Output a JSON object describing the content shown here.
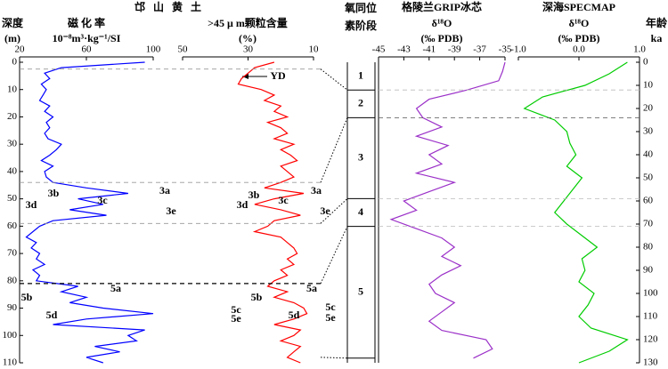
{
  "title": "邙 山 黄 土",
  "stages": {
    "title": "氧同位",
    "subtitle": "素阶段",
    "labels": [
      "1",
      "2",
      "3",
      "4",
      "5"
    ],
    "age_bounds": [
      0,
      12,
      24,
      59,
      71,
      128
    ],
    "depth_bounds": [
      0,
      2.5,
      44,
      59,
      81,
      108
    ]
  },
  "chart_data": [
    {
      "type": "line",
      "xlabel": "磁 化 率",
      "xunit": "10⁻⁸m³·kg⁻¹/SI",
      "ylabel": "深度",
      "yunit": "(m)",
      "color": "#0000ff",
      "xlim": [
        20,
        100
      ],
      "xticks": [
        20,
        60,
        100
      ],
      "ylim": [
        0,
        110
      ],
      "yticks": [
        0,
        10,
        20,
        30,
        40,
        50,
        60,
        70,
        80,
        90,
        100,
        110
      ],
      "y": [
        0,
        2,
        4,
        6,
        8,
        10,
        12,
        14,
        16,
        18,
        20,
        22,
        24,
        26,
        28,
        30,
        32,
        34,
        36,
        38,
        40,
        42,
        44,
        46,
        48,
        50,
        52,
        54,
        56,
        58,
        60,
        62,
        64,
        66,
        68,
        70,
        72,
        74,
        76,
        78,
        80,
        82,
        84,
        86,
        88,
        90,
        92,
        94,
        96,
        98,
        100,
        102,
        104,
        106,
        108,
        110
      ],
      "values": [
        95,
        45,
        35,
        38,
        33,
        36,
        34,
        32,
        38,
        35,
        40,
        36,
        38,
        35,
        37,
        45,
        42,
        38,
        33,
        40,
        35,
        36,
        40,
        60,
        85,
        55,
        70,
        50,
        72,
        40,
        32,
        28,
        24,
        30,
        27,
        32,
        30,
        35,
        28,
        32,
        30,
        55,
        45,
        60,
        50,
        70,
        100,
        60,
        40,
        95,
        85,
        90,
        65,
        80,
        60,
        70
      ],
      "annotations": [
        "3a",
        "3b",
        "3c",
        "3d",
        "3e",
        "5a",
        "5b",
        "5c",
        "5d",
        "5e"
      ]
    },
    {
      "type": "line",
      "xlabel": ">45 μ m颗粒含量",
      "xunit": "(%)",
      "color": "#ff0000",
      "xlim": [
        50,
        10
      ],
      "xticks": [
        50,
        30,
        10
      ],
      "ylim": [
        0,
        110
      ],
      "y": [
        0,
        2,
        4,
        6,
        8,
        10,
        12,
        14,
        16,
        18,
        20,
        22,
        24,
        26,
        28,
        30,
        32,
        34,
        36,
        38,
        40,
        42,
        44,
        46,
        48,
        50,
        52,
        54,
        56,
        58,
        60,
        62,
        64,
        66,
        68,
        70,
        72,
        74,
        76,
        78,
        80,
        82,
        84,
        86,
        88,
        90,
        92,
        94,
        96,
        98,
        100,
        102,
        104,
        106,
        108,
        110
      ],
      "values": [
        22,
        28,
        30,
        32,
        33,
        26,
        22,
        25,
        20,
        22,
        18,
        24,
        20,
        18,
        22,
        16,
        20,
        17,
        15,
        20,
        18,
        16,
        20,
        25,
        13,
        22,
        28,
        20,
        14,
        22,
        24,
        28,
        20,
        18,
        16,
        15,
        18,
        16,
        20,
        18,
        22,
        24,
        18,
        22,
        16,
        13,
        12,
        16,
        22,
        14,
        16,
        20,
        14,
        16,
        18,
        14
      ],
      "annotations": [
        "3a",
        "3b",
        "3c",
        "3d",
        "3e",
        "5a",
        "5b",
        "5c",
        "5d",
        "5e",
        "YD"
      ]
    },
    {
      "type": "line",
      "title": "格陵兰GRIP冰芯",
      "xlabel": "δ¹⁸O",
      "xunit": "(‰ PDB)",
      "color": "#9b30c8",
      "xlim": [
        -45,
        -35
      ],
      "xticks": [
        -45,
        -43,
        -41,
        -39,
        -37,
        -35
      ],
      "ylim": [
        0,
        130
      ],
      "y": [
        0,
        4,
        8,
        12,
        16,
        20,
        24,
        28,
        32,
        36,
        40,
        44,
        48,
        52,
        56,
        60,
        64,
        68,
        72,
        76,
        80,
        84,
        88,
        92,
        96,
        100,
        104,
        108,
        112,
        116,
        120,
        124,
        128
      ],
      "values": [
        -35,
        -35.2,
        -35.5,
        -38,
        -41,
        -42,
        -41.5,
        -40,
        -42,
        -39.5,
        -41,
        -40,
        -42,
        -39,
        -41,
        -43,
        -42,
        -44,
        -42,
        -40,
        -39,
        -40,
        -38.5,
        -40,
        -41,
        -40.5,
        -39,
        -40,
        -41,
        -40,
        -36.5,
        -36,
        -37.5
      ]
    },
    {
      "type": "line",
      "title": "深海SPECMAP",
      "xlabel": "δ¹⁸O",
      "xunit": "(‰ PDB)",
      "ylabel": "年龄",
      "yunit": "ka",
      "color": "#00cc00",
      "xlim": [
        -1,
        1
      ],
      "xticks": [
        {
          "value": -1,
          "label": "-1.0"
        },
        {
          "value": 0,
          "label": "0.0"
        },
        {
          "value": 1,
          "label": "1.0"
        }
      ],
      "ylim": [
        0,
        130
      ],
      "yticks": [
        0,
        10,
        20,
        30,
        40,
        50,
        60,
        70,
        80,
        90,
        100,
        110,
        120,
        130
      ],
      "y": [
        0,
        5,
        10,
        15,
        20,
        25,
        30,
        35,
        40,
        45,
        50,
        55,
        60,
        65,
        70,
        75,
        80,
        85,
        90,
        95,
        100,
        105,
        110,
        115,
        120,
        125,
        130
      ],
      "values": [
        0.8,
        0.5,
        0.1,
        -0.6,
        -0.9,
        -0.4,
        -0.2,
        -0.15,
        -0.05,
        -0.2,
        0.05,
        -0.1,
        -0.25,
        -0.4,
        -0.2,
        0.05,
        0.3,
        0.05,
        0.1,
        0,
        0.25,
        0.15,
        0,
        0.2,
        0.8,
        0.5,
        0
      ]
    }
  ]
}
